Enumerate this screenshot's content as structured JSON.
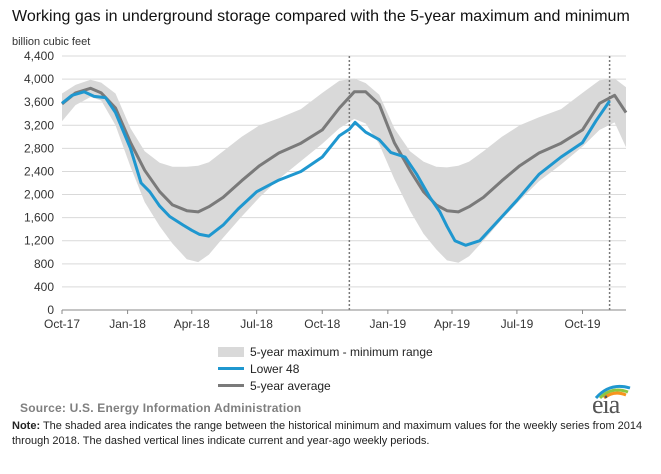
{
  "title": "Working gas in underground  storage compared with the 5-year maximum  and minimum",
  "unit_label": "billion cubic feet",
  "legend": {
    "band": "5-year maximum - minimum range",
    "lower48": "Lower 48",
    "avg": "5-year average"
  },
  "source": "Source:  U.S. Energy Information Administration",
  "note": {
    "label": "Note:",
    "text": " The shaded area indicates the range between the historical minimum and maximum values for the weekly series from 2014 through 2018. The dashed vertical lines indicate current and year-ago weekly periods."
  },
  "logo": {
    "text": "eia",
    "colors": [
      "#1f97cf",
      "#8dc63f",
      "#f7941d"
    ]
  },
  "colors": {
    "band": "#d9d9d9",
    "lower48": "#1f97cf",
    "avg": "#7a7a7a",
    "grid": "#d9d9d9",
    "dashed": "#7a7a7a"
  },
  "chart_data": {
    "type": "line",
    "ylim": [
      0,
      4400
    ],
    "yticks": [
      0,
      400,
      800,
      1200,
      1600,
      2000,
      2400,
      2800,
      3200,
      3600,
      4000,
      4400
    ],
    "ytick_labels": [
      "0",
      "400",
      "800",
      "1,200",
      "1,600",
      "2,000",
      "2,400",
      "2,800",
      "3,200",
      "3,600",
      "4,000",
      "4,400"
    ],
    "xlim": [
      "2017-10-01",
      "2019-12-01"
    ],
    "xticks": [
      "2017-10-01",
      "2018-01-01",
      "2018-04-01",
      "2018-07-01",
      "2018-10-01",
      "2019-01-01",
      "2019-04-01",
      "2019-07-01",
      "2019-10-01"
    ],
    "xtick_labels": [
      "Oct-17",
      "Jan-18",
      "Apr-18",
      "Jul-18",
      "Oct-18",
      "Jan-19",
      "Apr-19",
      "Jul-19",
      "Oct-19"
    ],
    "dashed_lines": [
      "2018-11-08",
      "2019-11-08"
    ],
    "grid": true,
    "legend_position": "bottom",
    "band": {
      "name": "5-year maximum - minimum range",
      "dates": [
        "2017-10-01",
        "2017-10-20",
        "2017-11-10",
        "2017-11-25",
        "2017-12-15",
        "2018-01-05",
        "2018-01-25",
        "2018-02-15",
        "2018-03-05",
        "2018-03-25",
        "2018-04-10",
        "2018-04-25",
        "2018-05-15",
        "2018-06-10",
        "2018-07-05",
        "2018-08-01",
        "2018-09-01",
        "2018-10-01",
        "2018-10-25",
        "2018-11-15",
        "2018-12-01",
        "2018-12-20",
        "2019-01-10",
        "2019-02-01",
        "2019-02-20",
        "2019-03-10",
        "2019-03-25",
        "2019-04-10",
        "2019-04-25",
        "2019-05-15",
        "2019-06-10",
        "2019-07-05",
        "2019-08-01",
        "2019-09-01",
        "2019-10-01",
        "2019-10-25",
        "2019-11-15",
        "2019-12-01"
      ],
      "upper": [
        3750,
        3900,
        3990,
        3940,
        3750,
        3150,
        2750,
        2550,
        2480,
        2480,
        2500,
        2560,
        2750,
        3000,
        3200,
        3320,
        3480,
        3760,
        3970,
        4010,
        3930,
        3730,
        3150,
        2750,
        2570,
        2480,
        2470,
        2500,
        2570,
        2750,
        3000,
        3200,
        3340,
        3480,
        3760,
        3980,
        4010,
        3860
      ],
      "lower": [
        3270,
        3550,
        3690,
        3630,
        3200,
        2480,
        1870,
        1450,
        1150,
        880,
        830,
        960,
        1250,
        1620,
        1950,
        2270,
        2580,
        2880,
        3150,
        3310,
        3230,
        2870,
        2270,
        1720,
        1320,
        1050,
        860,
        820,
        930,
        1200,
        1570,
        1900,
        2230,
        2520,
        2830,
        3120,
        3250,
        2820
      ]
    },
    "series": [
      {
        "name": "Lower 48",
        "dates": [
          "2017-10-01",
          "2017-10-15",
          "2017-11-01",
          "2017-11-15",
          "2017-12-01",
          "2017-12-15",
          "2018-01-05",
          "2018-01-20",
          "2018-02-01",
          "2018-02-15",
          "2018-03-01",
          "2018-03-20",
          "2018-04-01",
          "2018-04-12",
          "2018-04-25",
          "2018-05-15",
          "2018-06-05",
          "2018-07-01",
          "2018-08-01",
          "2018-09-01",
          "2018-10-01",
          "2018-10-25",
          "2018-11-08",
          "2018-11-16",
          "2018-12-01",
          "2018-12-20",
          "2019-01-05",
          "2019-01-25",
          "2019-02-10",
          "2019-03-01",
          "2019-03-15",
          "2019-03-25",
          "2019-04-05",
          "2019-04-20",
          "2019-05-10",
          "2019-06-05",
          "2019-07-01",
          "2019-08-01",
          "2019-09-01",
          "2019-10-01",
          "2019-10-20",
          "2019-11-08"
        ],
        "values": [
          3580,
          3720,
          3780,
          3700,
          3680,
          3420,
          2800,
          2200,
          2050,
          1800,
          1620,
          1470,
          1380,
          1310,
          1280,
          1470,
          1750,
          2050,
          2250,
          2400,
          2650,
          3020,
          3130,
          3250,
          3080,
          2950,
          2730,
          2650,
          2360,
          1950,
          1700,
          1450,
          1200,
          1120,
          1200,
          1550,
          1900,
          2350,
          2650,
          2900,
          3280,
          3620
        ]
      },
      {
        "name": "5-year average",
        "dates": [
          "2017-10-01",
          "2017-10-20",
          "2017-11-10",
          "2017-11-25",
          "2017-12-15",
          "2018-01-05",
          "2018-01-25",
          "2018-02-15",
          "2018-03-05",
          "2018-03-25",
          "2018-04-10",
          "2018-04-25",
          "2018-05-15",
          "2018-06-10",
          "2018-07-05",
          "2018-08-01",
          "2018-09-01",
          "2018-10-01",
          "2018-10-25",
          "2018-11-15",
          "2018-12-01",
          "2018-12-20",
          "2019-01-10",
          "2019-02-01",
          "2019-02-20",
          "2019-03-10",
          "2019-03-25",
          "2019-04-10",
          "2019-04-25",
          "2019-05-15",
          "2019-06-10",
          "2019-07-05",
          "2019-08-01",
          "2019-09-01",
          "2019-10-01",
          "2019-10-25",
          "2019-11-15",
          "2019-12-01"
        ],
        "values": [
          3570,
          3760,
          3840,
          3760,
          3500,
          2900,
          2420,
          2050,
          1820,
          1720,
          1700,
          1790,
          1950,
          2240,
          2500,
          2720,
          2890,
          3120,
          3500,
          3780,
          3780,
          3560,
          2900,
          2420,
          2050,
          1820,
          1720,
          1700,
          1790,
          1950,
          2240,
          2500,
          2720,
          2890,
          3120,
          3580,
          3720,
          3420
        ]
      }
    ]
  }
}
